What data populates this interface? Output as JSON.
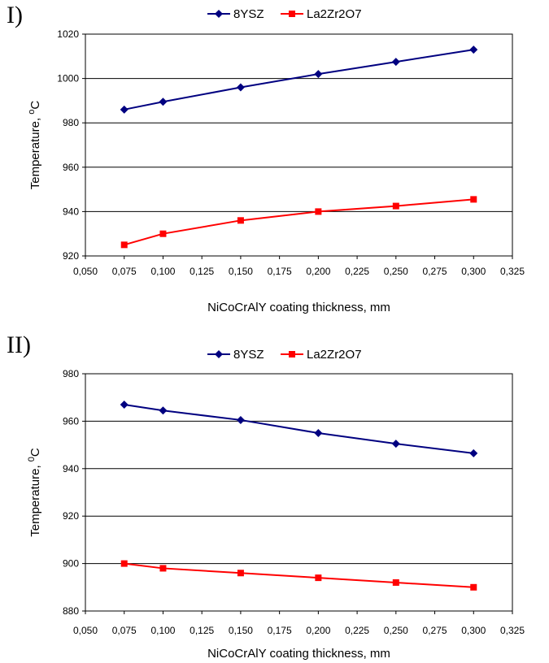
{
  "chart_data": [
    {
      "type": "line",
      "panel_label": "I)",
      "x": [
        0.075,
        0.1,
        0.15,
        0.2,
        0.25,
        0.3
      ],
      "series": [
        {
          "name": "8YSZ",
          "color": "#000080",
          "marker": "diamond",
          "values": [
            986,
            989.5,
            996,
            1002,
            1007.5,
            1013
          ]
        },
        {
          "name": "La2Zr2O7",
          "color": "#ff0000",
          "marker": "square",
          "values": [
            925,
            930,
            936,
            940,
            942.5,
            945.5
          ]
        }
      ],
      "xlabel": "NiCoCrAlY coating thickness, mm",
      "ylabel": "Temperature, ",
      "ylabel_sup": "o",
      "ylabel_end": "C",
      "xlim": [
        0.05,
        0.325
      ],
      "ylim": [
        920,
        1020
      ],
      "xticks": [
        "0,050",
        "0,075",
        "0,100",
        "0,125",
        "0,150",
        "0,175",
        "0,200",
        "0,225",
        "0,250",
        "0,275",
        "0,300",
        "0,325"
      ],
      "yticks": [
        "920",
        "940",
        "960",
        "980",
        "1000",
        "1020"
      ],
      "grid": true,
      "legend_position": "top"
    },
    {
      "type": "line",
      "panel_label": "II)",
      "x": [
        0.075,
        0.1,
        0.15,
        0.2,
        0.25,
        0.3
      ],
      "series": [
        {
          "name": "8YSZ",
          "color": "#000080",
          "marker": "diamond",
          "values": [
            967,
            964.5,
            960.5,
            955,
            950.5,
            946.5
          ]
        },
        {
          "name": "La2Zr2O7",
          "color": "#ff0000",
          "marker": "square",
          "values": [
            900,
            898,
            896,
            894,
            892,
            890
          ]
        }
      ],
      "xlabel": "NiCoCrAlY coating thickness, mm",
      "ylabel": "Temperature, ",
      "ylabel_sup": "0",
      "ylabel_end": "C",
      "xlim": [
        0.05,
        0.325
      ],
      "ylim": [
        880,
        980
      ],
      "xticks": [
        "0,050",
        "0,075",
        "0,100",
        "0,125",
        "0,150",
        "0,175",
        "0,200",
        "0,225",
        "0,250",
        "0,275",
        "0,300",
        "0,325"
      ],
      "yticks": [
        "880",
        "900",
        "920",
        "940",
        "960",
        "980"
      ],
      "grid": true,
      "legend_position": "top"
    }
  ]
}
